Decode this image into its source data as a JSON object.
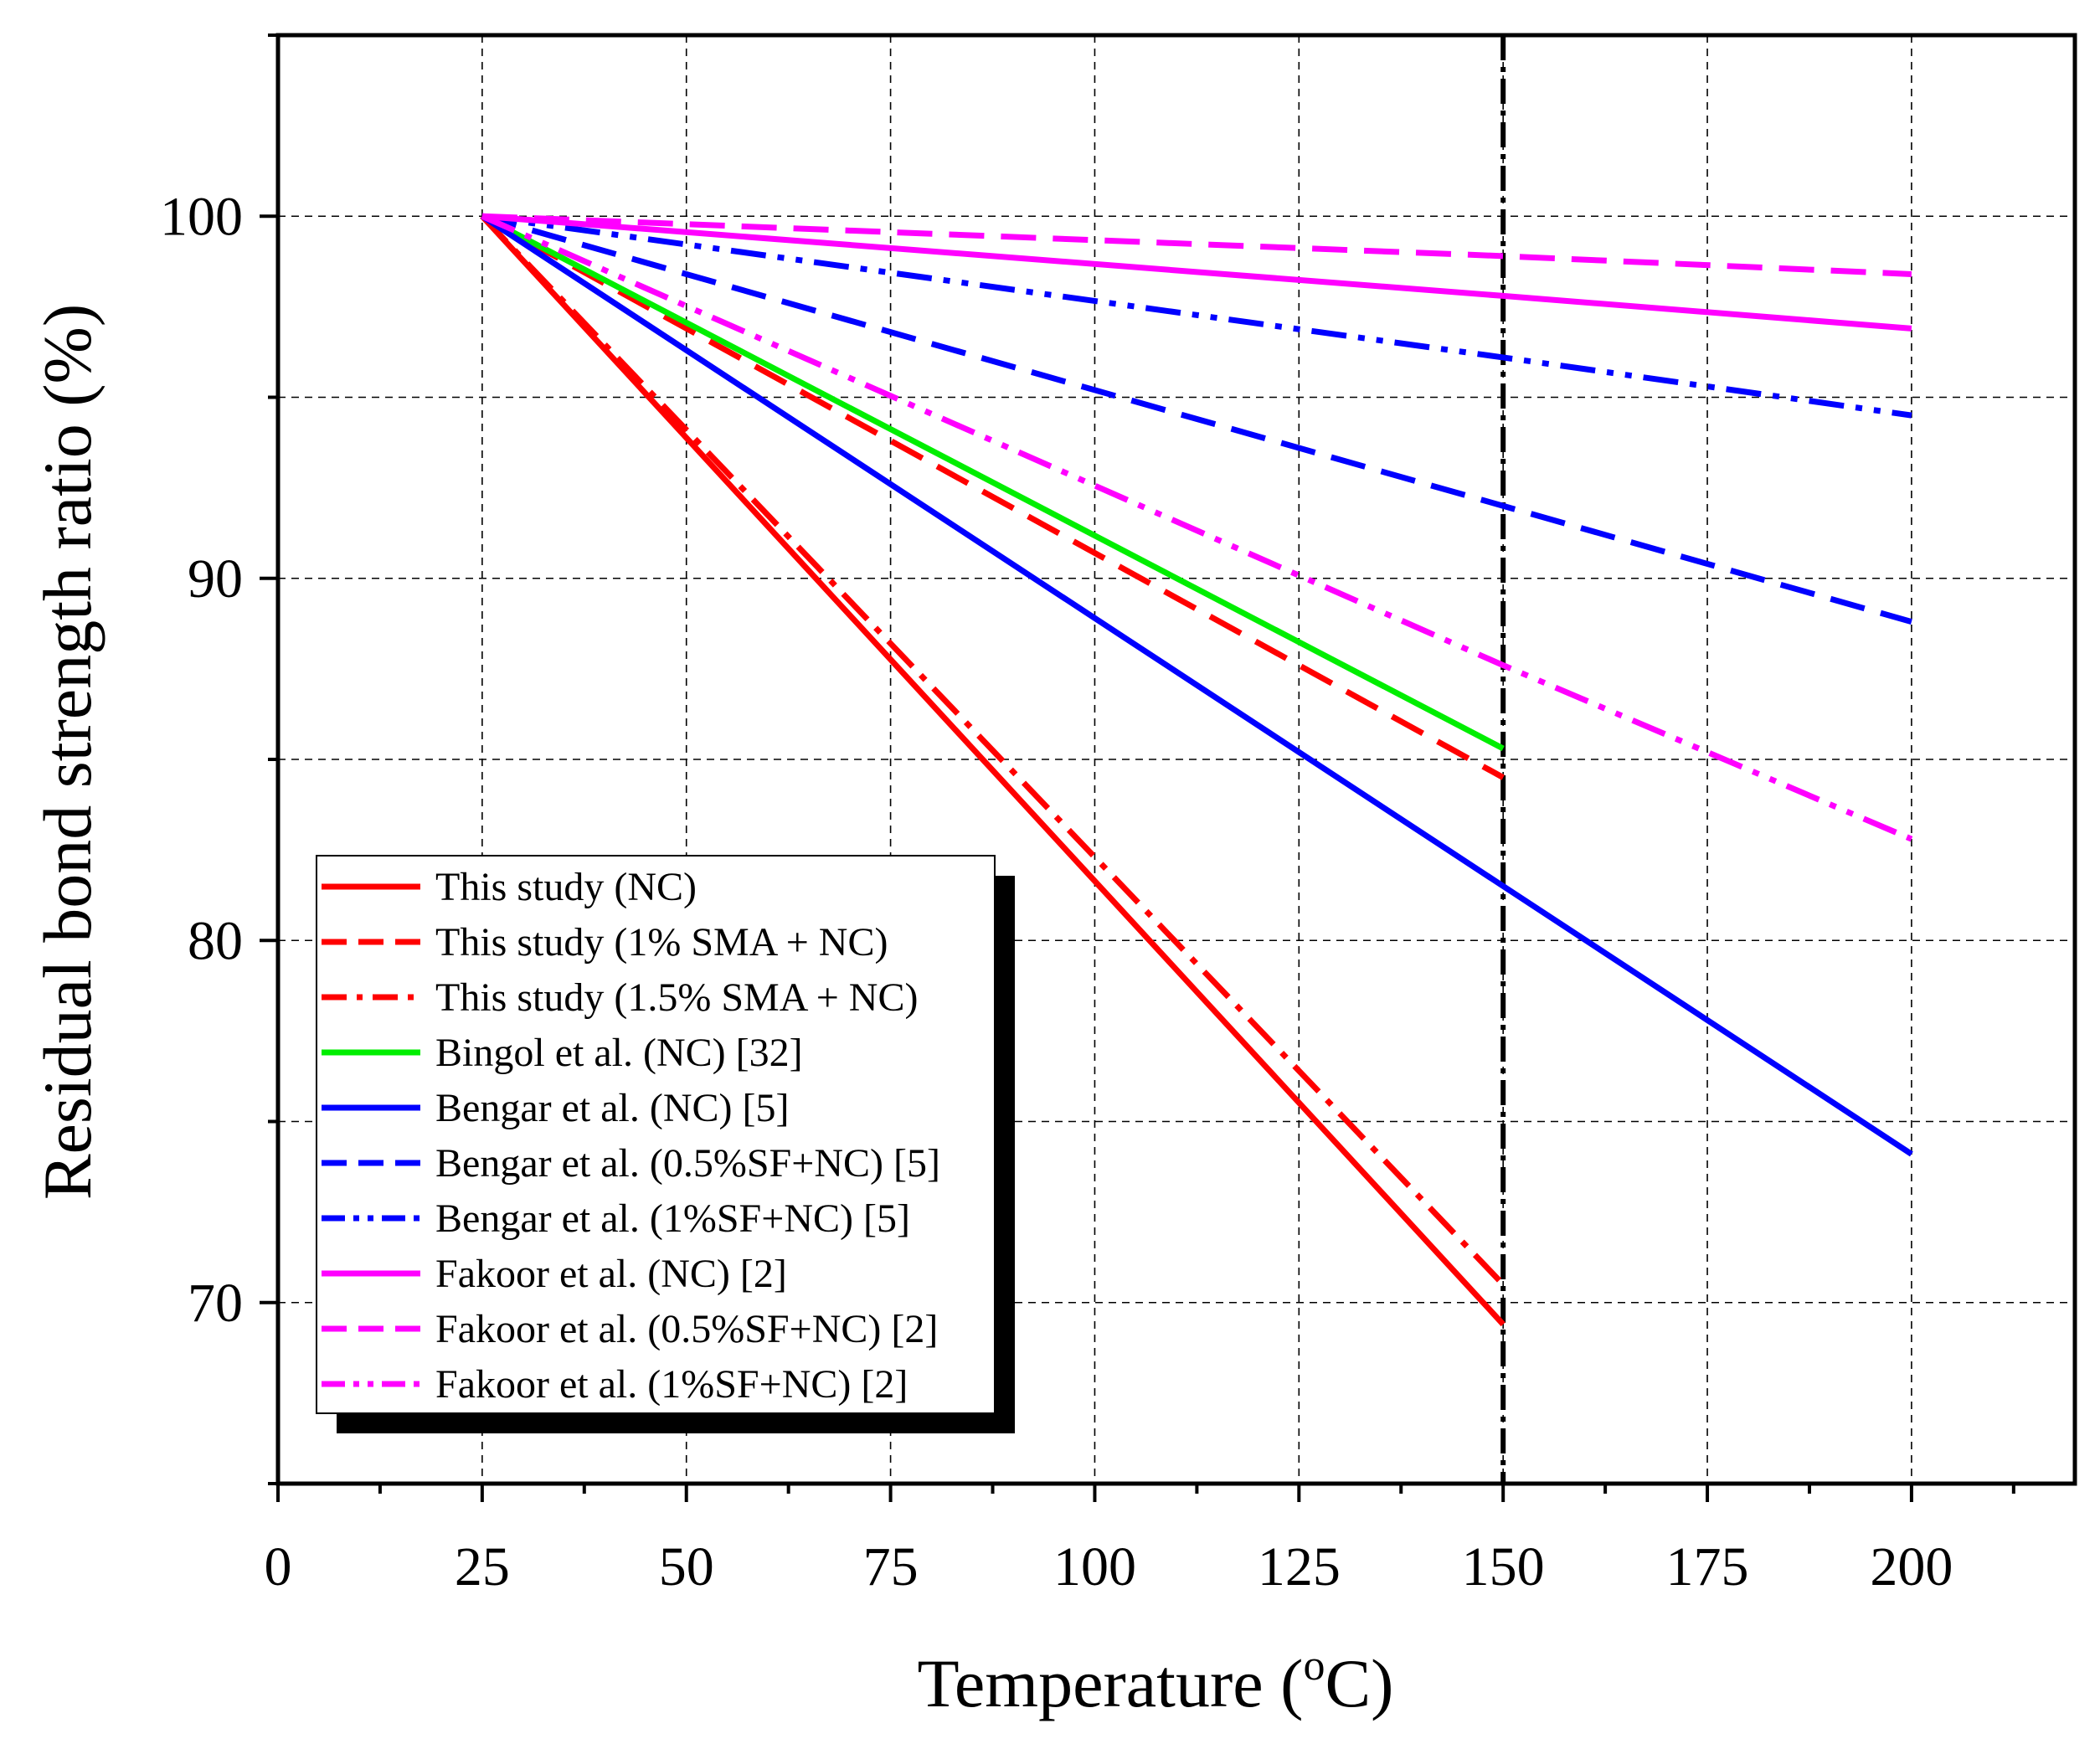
{
  "chart_data": {
    "type": "line",
    "title": "",
    "xlabel": "Temperature (oC)",
    "xlabel_parts": {
      "base": "Temperature (",
      "sup": "o",
      "rest": "C)"
    },
    "ylabel": "Residual bond strength ratio (%)",
    "xlim": [
      0,
      220
    ],
    "ylim": [
      65,
      105
    ],
    "xticks": [
      0,
      25,
      50,
      75,
      100,
      125,
      150,
      175,
      200
    ],
    "xtick_labels": [
      "0",
      "25",
      "50",
      "75",
      "100",
      "125",
      "150",
      "175",
      "200"
    ],
    "yticks": [
      70,
      80,
      90,
      100
    ],
    "ytick_labels": [
      "70",
      "80",
      "90",
      "100"
    ],
    "grid": true,
    "grid_x": [
      25,
      50,
      75,
      100,
      125,
      150,
      175,
      200
    ],
    "grid_y": [
      70,
      75,
      80,
      85,
      90,
      95,
      100
    ],
    "reference_line": {
      "x": 150,
      "style": "dash-dot",
      "color": "#000000"
    },
    "legend_position": "bottom-left",
    "series": [
      {
        "name": "This study (NC)",
        "color": "#ff0000",
        "dash": "solid",
        "x": [
          25,
          150
        ],
        "y": [
          100,
          69.4
        ]
      },
      {
        "name": "This study (1% SMA + NC)",
        "color": "#ff0000",
        "dash": "dash",
        "x": [
          25,
          150
        ],
        "y": [
          100,
          84.5
        ]
      },
      {
        "name": "This study (1.5% SMA + NC)",
        "color": "#ff0000",
        "dash": "dashdot",
        "x": [
          25,
          150
        ],
        "y": [
          100,
          70.5
        ]
      },
      {
        "name": "Bingol et al. (NC) [32]",
        "color": "#00ee00",
        "dash": "solid",
        "x": [
          25,
          150
        ],
        "y": [
          100,
          85.3
        ]
      },
      {
        "name": "Bengar et al. (NC) [5]",
        "color": "#0000ff",
        "dash": "solid",
        "x": [
          25,
          150,
          200
        ],
        "y": [
          100,
          81.5,
          74.1
        ]
      },
      {
        "name": "Bengar et al. (0.5%SF+NC) [5]",
        "color": "#0000ff",
        "dash": "dash",
        "x": [
          25,
          150,
          200
        ],
        "y": [
          100,
          92.0,
          88.8
        ]
      },
      {
        "name": "Bengar et al. (1%SF+NC) [5]",
        "color": "#0000ff",
        "dash": "dashdotdot",
        "x": [
          25,
          150,
          200
        ],
        "y": [
          100,
          96.1,
          94.5
        ]
      },
      {
        "name": "Fakoor et al. (NC) [2]",
        "color": "#ff00ff",
        "dash": "solid",
        "x": [
          25,
          150,
          200
        ],
        "y": [
          100,
          97.8,
          96.9
        ]
      },
      {
        "name": "Fakoor et al. (0.5%SF+NC) [2]",
        "color": "#ff00ff",
        "dash": "dash",
        "x": [
          25,
          150,
          200
        ],
        "y": [
          100,
          98.9,
          98.4
        ]
      },
      {
        "name": "Fakoor et al. (1%SF+NC) [2]",
        "color": "#ff00ff",
        "dash": "dashdotdot",
        "x": [
          25,
          150,
          200
        ],
        "y": [
          100,
          87.6,
          82.8
        ]
      }
    ]
  }
}
